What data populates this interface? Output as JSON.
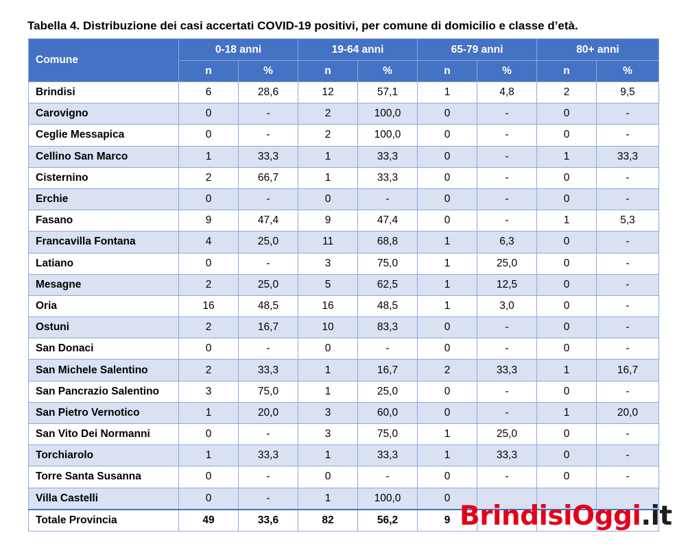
{
  "title": "Tabella 4. Distribuzione dei casi accertati COVID-19 positivi, per comune di domicilio e classe d’età.",
  "header": {
    "comune": "Comune",
    "groups": [
      "0-18 anni",
      "19-64 anni",
      "65-79 anni",
      "80+ anni"
    ],
    "sub_n": "n",
    "sub_pct": "%"
  },
  "rows": [
    {
      "name": "Brindisi",
      "cells": [
        "6",
        "28,6",
        "12",
        "57,1",
        "1",
        "4,8",
        "2",
        "9,5"
      ]
    },
    {
      "name": "Carovigno",
      "cells": [
        "0",
        "-",
        "2",
        "100,0",
        "0",
        "-",
        "0",
        "-"
      ]
    },
    {
      "name": "Ceglie Messapica",
      "cells": [
        "0",
        "-",
        "2",
        "100,0",
        "0",
        "-",
        "0",
        "-"
      ]
    },
    {
      "name": "Cellino San Marco",
      "cells": [
        "1",
        "33,3",
        "1",
        "33,3",
        "0",
        "-",
        "1",
        "33,3"
      ]
    },
    {
      "name": "Cisternino",
      "cells": [
        "2",
        "66,7",
        "1",
        "33,3",
        "0",
        "-",
        "0",
        "-"
      ]
    },
    {
      "name": "Erchie",
      "cells": [
        "0",
        "-",
        "0",
        "-",
        "0",
        "-",
        "0",
        "-"
      ]
    },
    {
      "name": "Fasano",
      "cells": [
        "9",
        "47,4",
        "9",
        "47,4",
        "0",
        "-",
        "1",
        "5,3"
      ]
    },
    {
      "name": "Francavilla Fontana",
      "cells": [
        "4",
        "25,0",
        "11",
        "68,8",
        "1",
        "6,3",
        "0",
        "-"
      ]
    },
    {
      "name": "Latiano",
      "cells": [
        "0",
        "-",
        "3",
        "75,0",
        "1",
        "25,0",
        "0",
        "-"
      ]
    },
    {
      "name": "Mesagne",
      "cells": [
        "2",
        "25,0",
        "5",
        "62,5",
        "1",
        "12,5",
        "0",
        "-"
      ]
    },
    {
      "name": "Oria",
      "cells": [
        "16",
        "48,5",
        "16",
        "48,5",
        "1",
        "3,0",
        "0",
        "-"
      ]
    },
    {
      "name": "Ostuni",
      "cells": [
        "2",
        "16,7",
        "10",
        "83,3",
        "0",
        "-",
        "0",
        "-"
      ]
    },
    {
      "name": "San Donaci",
      "cells": [
        "0",
        "-",
        "0",
        "-",
        "0",
        "-",
        "0",
        "-"
      ]
    },
    {
      "name": "San Michele Salentino",
      "cells": [
        "2",
        "33,3",
        "1",
        "16,7",
        "2",
        "33,3",
        "1",
        "16,7"
      ]
    },
    {
      "name": "San Pancrazio Salentino",
      "cells": [
        "3",
        "75,0",
        "1",
        "25,0",
        "0",
        "-",
        "0",
        "-"
      ]
    },
    {
      "name": "San Pietro Vernotico",
      "cells": [
        "1",
        "20,0",
        "3",
        "60,0",
        "0",
        "-",
        "1",
        "20,0"
      ]
    },
    {
      "name": "San Vito Dei Normanni",
      "cells": [
        "0",
        "-",
        "3",
        "75,0",
        "1",
        "25,0",
        "0",
        "-"
      ]
    },
    {
      "name": "Torchiarolo",
      "cells": [
        "1",
        "33,3",
        "1",
        "33,3",
        "1",
        "33,3",
        "0",
        "-"
      ]
    },
    {
      "name": "Torre Santa Susanna",
      "cells": [
        "0",
        "-",
        "0",
        "-",
        "0",
        "-",
        "0",
        "-"
      ]
    },
    {
      "name": "Villa Castelli",
      "cells": [
        "0",
        "-",
        "1",
        "100,0",
        "0",
        "",
        "",
        ""
      ]
    }
  ],
  "total": {
    "name": "Totale Provincia",
    "cells": [
      "49",
      "33,6",
      "82",
      "56,2",
      "9",
      "",
      "",
      ""
    ]
  },
  "watermark": {
    "part1": "Brindisi",
    "part2": "Oggi",
    "part3": ".it"
  }
}
